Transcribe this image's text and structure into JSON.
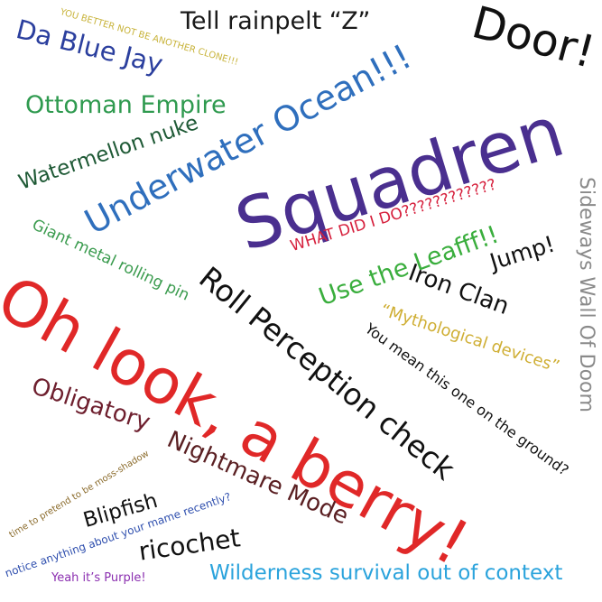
{
  "word_cloud": {
    "words": [
      {
        "id": "tell-rainpelt",
        "text": "Tell rainpelt “Z”",
        "color": "#1a1a1a"
      },
      {
        "id": "door",
        "text": "Door!",
        "color": "#111111"
      },
      {
        "id": "da-blue-jay",
        "text": "Da Blue Jay",
        "color": "#2b3f9e"
      },
      {
        "id": "another-clone",
        "text": "YOU BETTER NOT BE ANOTHER CLONE!!!",
        "color": "#c8b33a"
      },
      {
        "id": "ottoman-empire",
        "text": "Ottoman Empire",
        "color": "#2f9a4f"
      },
      {
        "id": "underwater-ocean",
        "text": "Underwater Ocean!!!",
        "color": "#2f6fbd"
      },
      {
        "id": "watermellon-nuke",
        "text": "Watermellon nuke",
        "color": "#1f5a36"
      },
      {
        "id": "squadren",
        "text": "Squadren",
        "color": "#4a2f8f"
      },
      {
        "id": "what-did-i-do",
        "text": "WHAT DID I DO????????????",
        "color": "#d61f3c"
      },
      {
        "id": "sideways-wall",
        "text": "Sideways Wall Of Doom",
        "color": "#8a8a8a"
      },
      {
        "id": "giant-metal",
        "text": "Giant metal rolling pin",
        "color": "#3a9b4e"
      },
      {
        "id": "use-the-leafff",
        "text": "Use the Leafff!!",
        "color": "#3aae3d"
      },
      {
        "id": "jump",
        "text": "Jump!",
        "color": "#111111"
      },
      {
        "id": "iron-clan",
        "text": "Iron Clan",
        "color": "#111111"
      },
      {
        "id": "roll-perception",
        "text": "Roll Perception check",
        "color": "#111111"
      },
      {
        "id": "oh-look-berry",
        "text": "Oh look, a berry!",
        "color": "#e02828"
      },
      {
        "id": "mythological",
        "text": "“Mythological devices”",
        "color": "#cfae33"
      },
      {
        "id": "you-mean-this",
        "text": "You mean this one on the ground?",
        "color": "#111111"
      },
      {
        "id": "obligatory",
        "text": "Obligatory",
        "color": "#6e1f2e"
      },
      {
        "id": "nightmare-mode",
        "text": "Nightmare Mode",
        "color": "#5a1f22"
      },
      {
        "id": "moss-shadow",
        "text": "time to pretend to be moss-shadow",
        "color": "#8a6a2a"
      },
      {
        "id": "blipfish",
        "text": "Blipfish",
        "color": "#111111"
      },
      {
        "id": "notice-mame",
        "text": "notice anything about your mame recently?",
        "color": "#2f4fae"
      },
      {
        "id": "ricochet",
        "text": "ricochet",
        "color": "#111111"
      },
      {
        "id": "yeah-purple",
        "text": "Yeah it’s Purple!",
        "color": "#8b2fb0"
      },
      {
        "id": "wilderness",
        "text": "Wilderness survival out of context",
        "color": "#2aa3dc"
      }
    ]
  }
}
